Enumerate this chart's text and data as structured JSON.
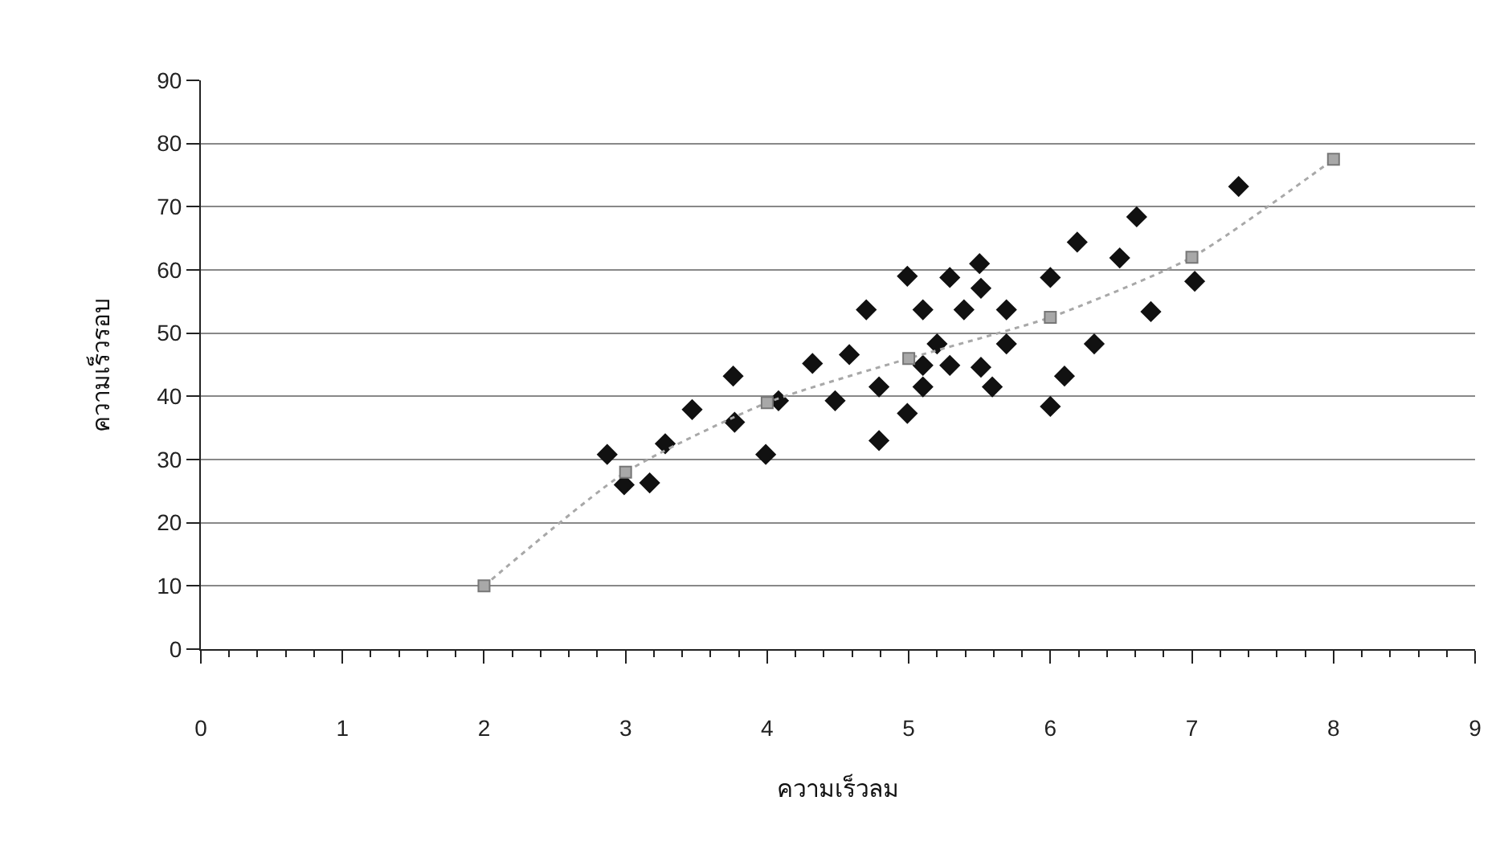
{
  "chart_data": {
    "type": "scatter",
    "xlabel": "ความเร็วลม",
    "ylabel": "ความเร็วรอบ",
    "xlim": [
      0,
      9
    ],
    "xticks": [
      0,
      1,
      2,
      3,
      4,
      5,
      6,
      7,
      8,
      9
    ],
    "ylim": [
      0,
      90
    ],
    "yticks": [
      0,
      10,
      20,
      30,
      40,
      50,
      60,
      70,
      80,
      90
    ],
    "grid": "y",
    "series": [
      {
        "color": "#111111",
        "marker": "diamond",
        "x": [
          2.87,
          2.99,
          3.17,
          3.28,
          3.47,
          3.77,
          3.76,
          3.99,
          4.08,
          4.32,
          4.48,
          4.58,
          4.7,
          4.79,
          4.79,
          4.99,
          4.99,
          5.1,
          5.1,
          5.1,
          5.2,
          5.29,
          5.29,
          5.39,
          5.5,
          5.51,
          5.51,
          5.59,
          5.69,
          5.69,
          6.0,
          6.0,
          6.1,
          6.19,
          6.31,
          6.49,
          6.61,
          6.71,
          7.02,
          7.33
        ],
        "values": [
          30.8,
          26.0,
          26.3,
          32.5,
          37.9,
          35.9,
          43.2,
          30.8,
          39.3,
          45.2,
          39.3,
          46.6,
          53.7,
          41.5,
          33.0,
          37.3,
          59.0,
          41.5,
          44.9,
          53.7,
          48.3,
          44.9,
          58.8,
          53.7,
          61.0,
          57.1,
          44.6,
          41.5,
          48.3,
          53.7,
          38.4,
          58.8,
          43.2,
          64.4,
          48.3,
          61.9,
          68.4,
          53.4,
          58.2,
          73.2
        ]
      },
      {
        "type": "line",
        "color": "#a8a8a8",
        "marker": "square",
        "line_style": "dotted",
        "x": [
          2,
          3,
          4,
          5,
          6,
          7,
          8
        ],
        "values": [
          10,
          28,
          39,
          46,
          52.5,
          62,
          77.5
        ]
      }
    ]
  }
}
